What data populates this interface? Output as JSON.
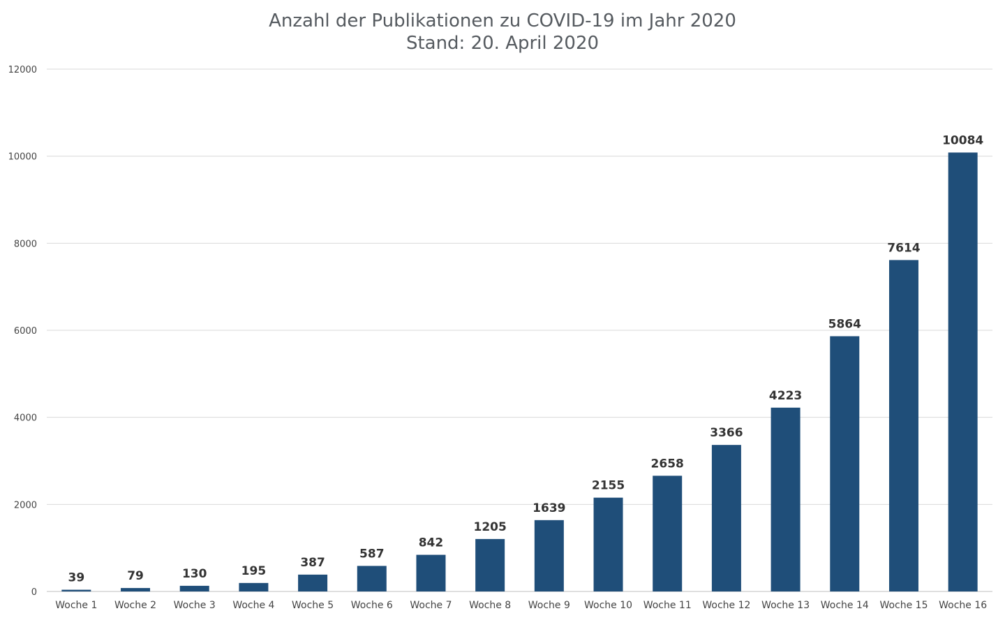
{
  "chart_data": {
    "type": "bar",
    "title": "Anzahl der Publikationen zu COVID-19 im Jahr 2020",
    "subtitle": "Stand: 20. April 2020",
    "xlabel": "",
    "ylabel": "",
    "categories": [
      "Woche 1",
      "Woche 2",
      "Woche 3",
      "Woche 4",
      "Woche 5",
      "Woche 6",
      "Woche 7",
      "Woche 8",
      "Woche 9",
      "Woche 10",
      "Woche 11",
      "Woche 12",
      "Woche 13",
      "Woche 14",
      "Woche 15",
      "Woche 16"
    ],
    "values": [
      39,
      79,
      130,
      195,
      387,
      587,
      842,
      1205,
      1639,
      2155,
      2658,
      3366,
      4223,
      5864,
      7614,
      10084
    ],
    "ylim": [
      0,
      12000
    ],
    "yticks": [
      0,
      2000,
      4000,
      6000,
      8000,
      10000,
      12000
    ],
    "grid": true,
    "legend": "none",
    "data_labels": true,
    "colors": {
      "bar": "#1f4e79",
      "grid": "#d9d9d9",
      "title": "#555a5f"
    }
  }
}
